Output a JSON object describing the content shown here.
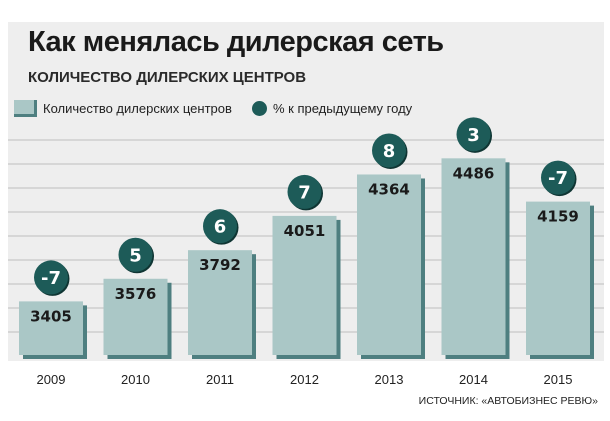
{
  "title": "Как менялась дилерская сеть",
  "subtitle": "КОЛИЧЕСТВО ДИЛЕРСКИХ ЦЕНТРОВ",
  "legend": {
    "bars": "Количество дилерских центров",
    "circles": "% к предыдущему году"
  },
  "source": "ИСТОЧНИК: «АВТОБИЗНЕС РЕВЮ»",
  "colors": {
    "bar_face": "#aac7c6",
    "bar_side": "#4e7f80",
    "circle": "#1d5b58",
    "background": "#eeeeee",
    "grid": "#bfbfbf"
  },
  "chart_data": {
    "type": "bar",
    "categories": [
      "2009",
      "2010",
      "2011",
      "2012",
      "2013",
      "2014",
      "2015"
    ],
    "series": [
      {
        "values": [
          3405,
          3576,
          3792,
          4051,
          4364,
          4486,
          4159
        ]
      },
      {
        "values": [
          -7,
          5,
          6,
          7,
          8,
          3,
          -7
        ]
      }
    ],
    "value_labels": [
      "3405",
      "3576",
      "3792",
      "4051",
      "4364",
      "4486",
      "4159"
    ],
    "pct_labels": [
      "-7",
      "5",
      "6",
      "7",
      "8",
      "3",
      "-7"
    ],
    "ylim": [
      3000,
      4700
    ],
    "grid": true,
    "legend_position": "top-left"
  }
}
